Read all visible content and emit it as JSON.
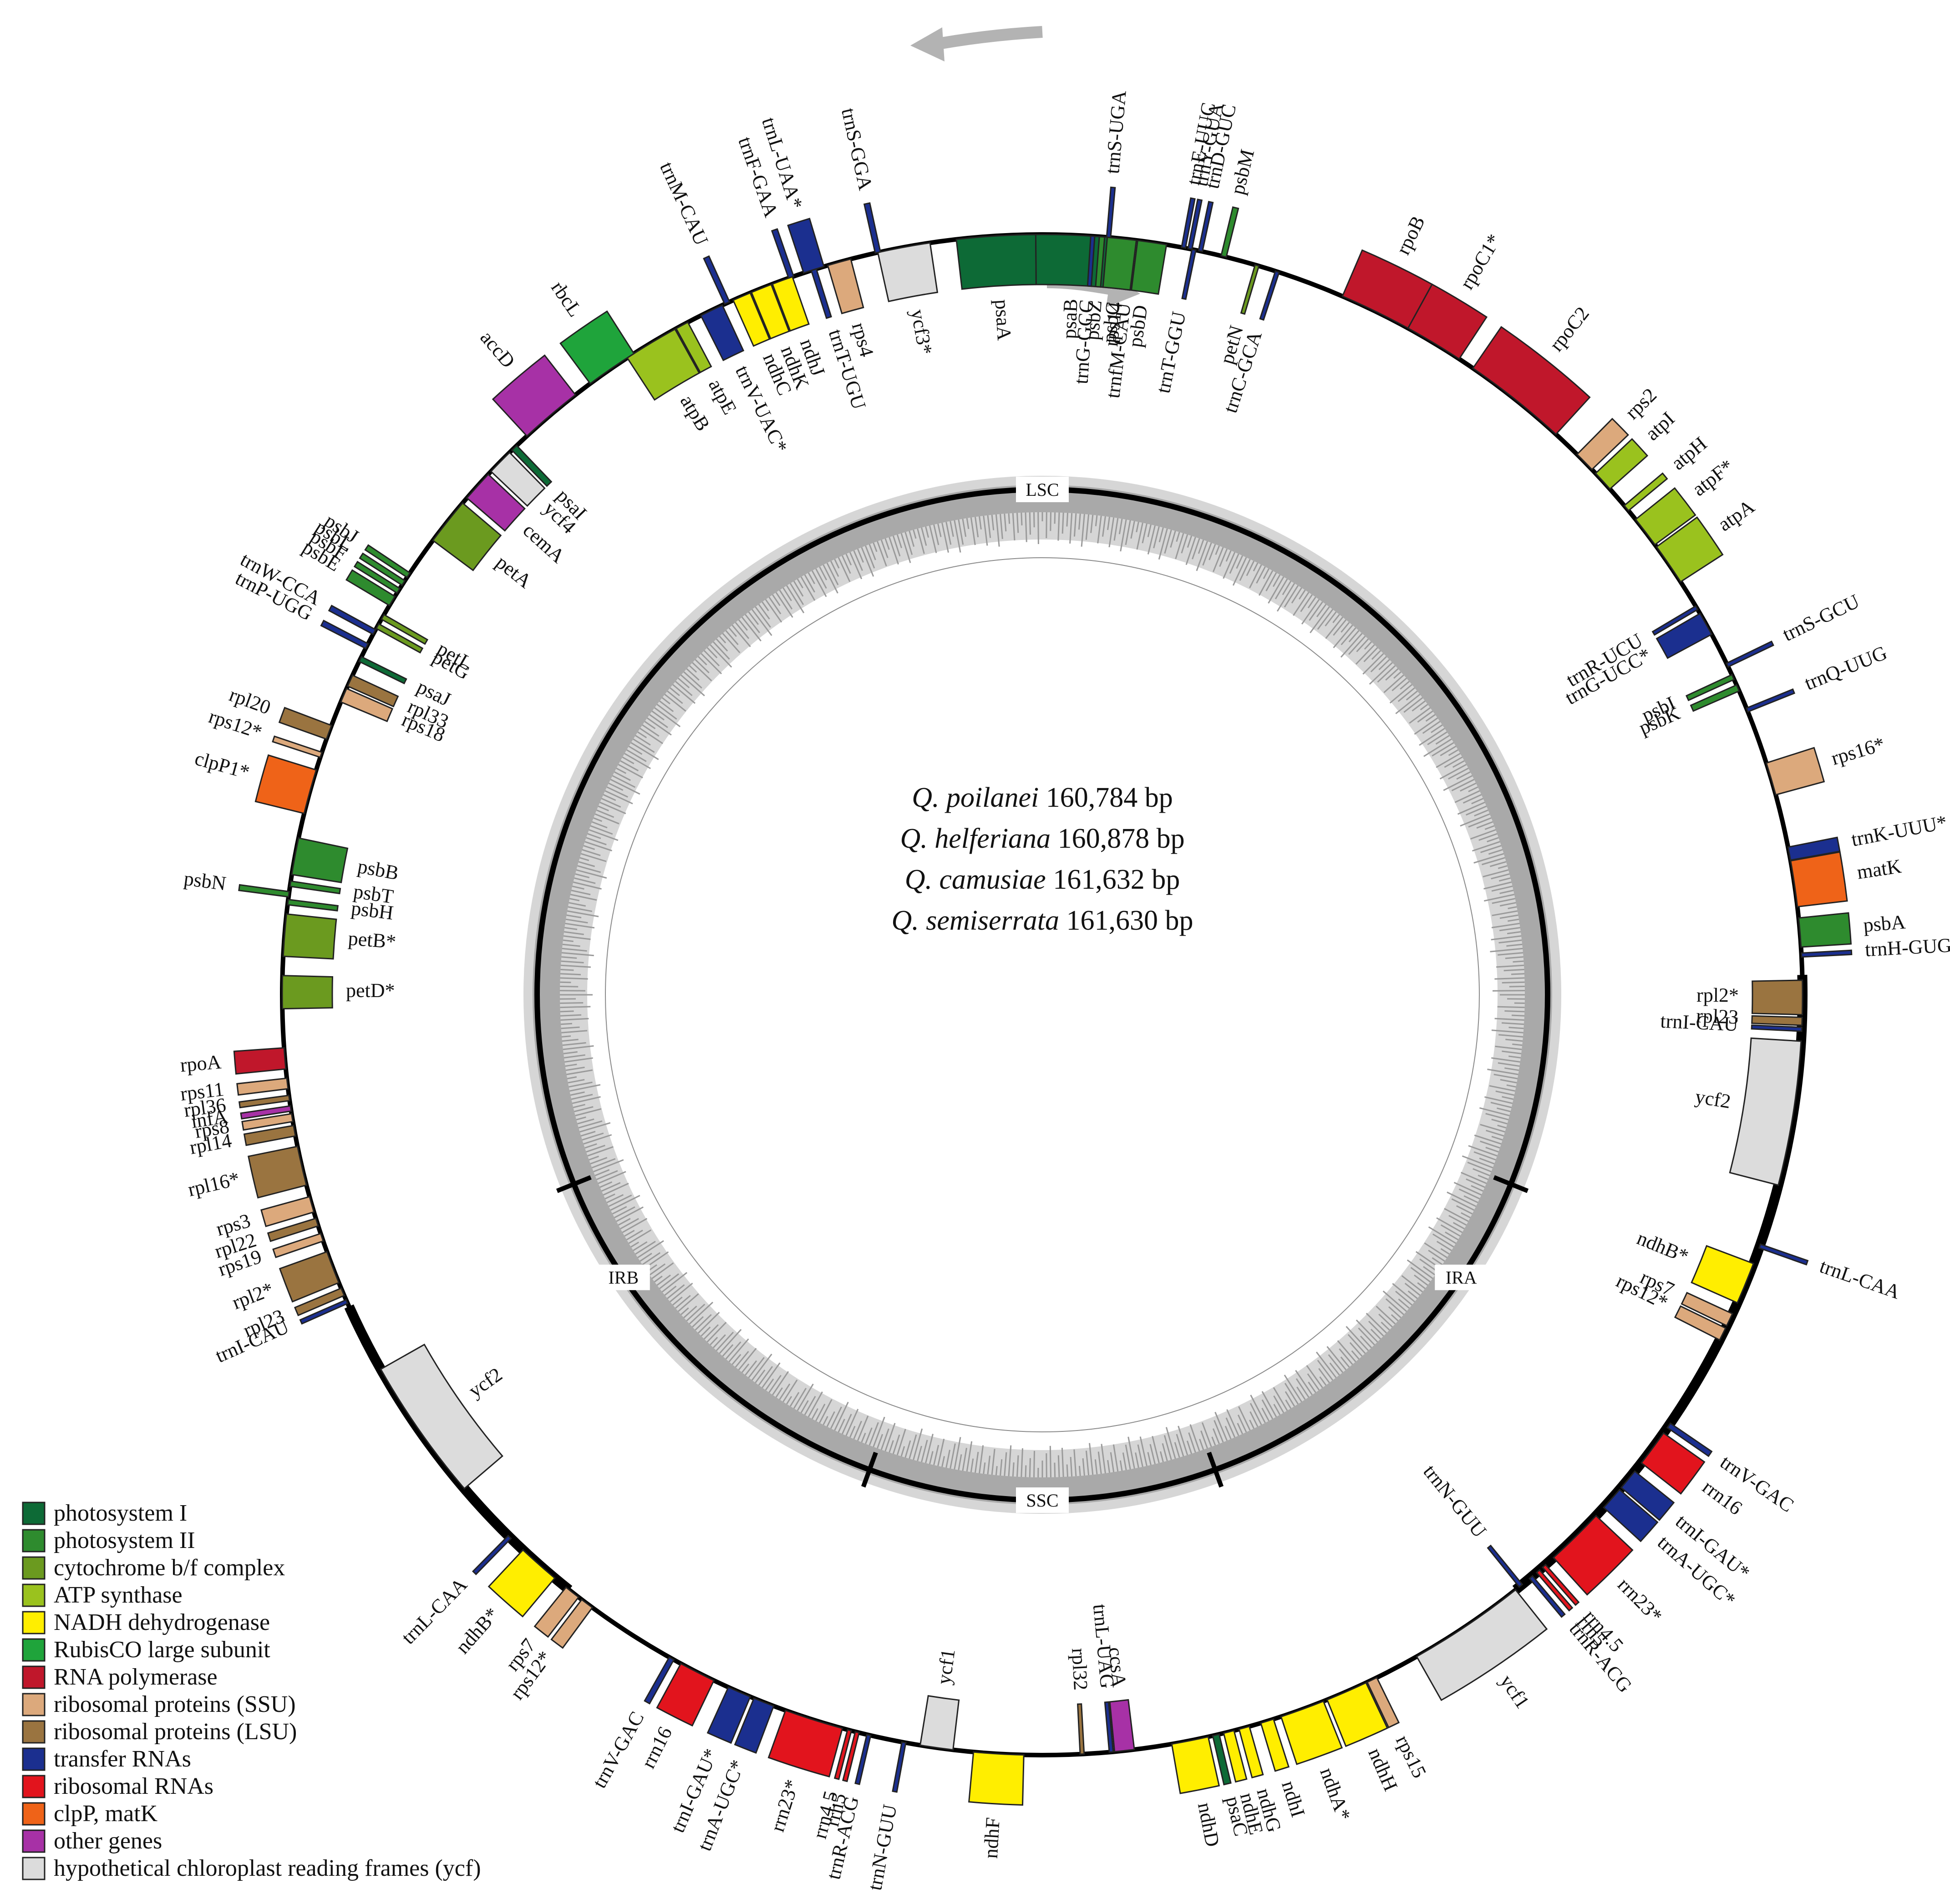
{
  "center": {
    "lines": [
      {
        "species": "Q. poilanei",
        "size": "160,784 bp"
      },
      {
        "species": "Q. helferiana",
        "size": "160,878 bp"
      },
      {
        "species": "Q. camusiae",
        "size": "161,632 bp"
      },
      {
        "species": "Q. semiserrata",
        "size": "161,630 bp"
      }
    ]
  },
  "regions": [
    {
      "label": "LSC",
      "angle": 0
    },
    {
      "label": "IRA",
      "angle": 124
    },
    {
      "label": "SSC",
      "angle": 180
    },
    {
      "label": "IRB",
      "angle": 236
    }
  ],
  "boundary_ticks": [
    112,
    160,
    200,
    248
  ],
  "legend": [
    {
      "key": "psi",
      "label": "photosystem I",
      "color": "#0d6a36"
    },
    {
      "key": "psii",
      "label": "photosystem II",
      "color": "#2e8b2e"
    },
    {
      "key": "cyt",
      "label": "cytochrome b/f complex",
      "color": "#6b9a1f"
    },
    {
      "key": "atp",
      "label": "ATP synthase",
      "color": "#9ac21e"
    },
    {
      "key": "ndh",
      "label": "NADH dehydrogenase",
      "color": "#ffee00"
    },
    {
      "key": "rbc",
      "label": "RubisCO large subunit",
      "color": "#1fa43b"
    },
    {
      "key": "rpo",
      "label": "RNA polymerase",
      "color": "#c0172b"
    },
    {
      "key": "rps",
      "label": "ribosomal proteins (SSU)",
      "color": "#dca97c"
    },
    {
      "key": "rpl",
      "label": "ribosomal proteins (LSU)",
      "color": "#9a7440"
    },
    {
      "key": "trn",
      "label": "transfer RNAs",
      "color": "#1b2f8f"
    },
    {
      "key": "rrn",
      "label": "ribosomal RNAs",
      "color": "#e2141d"
    },
    {
      "key": "clp",
      "label": "clpP, matK",
      "color": "#ef6318"
    },
    {
      "key": "oth",
      "label": "other genes",
      "color": "#a731a6"
    },
    {
      "key": "ycf",
      "label": "hypothetical chloroplast reading frames (ycf)",
      "color": "#dcdcdc"
    }
  ],
  "genes": [
    {
      "n": "psaA",
      "a": -3.5,
      "w": 6.0,
      "s": "in",
      "t": "psi"
    },
    {
      "n": "psaB",
      "a": 2.5,
      "w": 6.0,
      "s": "in",
      "t": "psi"
    },
    {
      "n": "rps14",
      "a": 6.2,
      "w": 1.0,
      "s": "in",
      "t": "rps"
    },
    {
      "n": "trnfM-CAU",
      "a": 6.9,
      "w": 0.3,
      "s": "in",
      "t": "trn"
    },
    {
      "n": "ycf3*",
      "a": -10.5,
      "w": 4.0,
      "s": "in",
      "t": "ycf"
    },
    {
      "n": "rps4",
      "a": -15.5,
      "w": 1.8,
      "s": "in",
      "t": "rps"
    },
    {
      "n": "trnT-UGU",
      "a": -17.5,
      "w": 0.4,
      "s": "in",
      "t": "trn"
    },
    {
      "n": "ndhJ",
      "a": -20.0,
      "w": 1.6,
      "s": "in",
      "t": "ndh"
    },
    {
      "n": "ndhK",
      "a": -21.7,
      "w": 1.6,
      "s": "in",
      "t": "ndh"
    },
    {
      "n": "ndhC",
      "a": -23.3,
      "w": 1.4,
      "s": "in",
      "t": "ndh"
    },
    {
      "n": "trnV-UAC*",
      "a": -25.8,
      "w": 1.8,
      "s": "in",
      "t": "trn"
    },
    {
      "n": "atpE",
      "a": -28.3,
      "w": 1.0,
      "s": "in",
      "t": "atp"
    },
    {
      "n": "atpB",
      "a": -31.0,
      "w": 4.2,
      "s": "in",
      "t": "atp"
    },
    {
      "n": "trnS-GGA",
      "a": -12.5,
      "w": 0.4,
      "s": "out",
      "t": "trn"
    },
    {
      "n": "trnL-UAA*",
      "a": -17.5,
      "w": 1.6,
      "s": "out",
      "t": "trn"
    },
    {
      "n": "trnF-GAA",
      "a": -19.3,
      "w": 0.4,
      "s": "out",
      "t": "trn"
    },
    {
      "n": "trnM-CAU",
      "a": -24.5,
      "w": 0.4,
      "s": "out",
      "t": "trn"
    },
    {
      "n": "rbcL",
      "a": -34.5,
      "w": 4.0,
      "s": "out",
      "t": "rbc"
    },
    {
      "n": "accD",
      "a": -40.3,
      "w": 4.8,
      "s": "out",
      "t": "oth"
    },
    {
      "n": "psaI",
      "a": -44.0,
      "w": 0.5,
      "s": "in",
      "t": "psi"
    },
    {
      "n": "ycf4",
      "a": -45.5,
      "w": 2.0,
      "s": "in",
      "t": "ycf"
    },
    {
      "n": "cemA",
      "a": -48.0,
      "w": 2.4,
      "s": "in",
      "t": "oth"
    },
    {
      "n": "petA",
      "a": -51.5,
      "w": 3.6,
      "s": "in",
      "t": "cyt"
    },
    {
      "n": "psbJ",
      "a": -56.5,
      "w": 0.4,
      "s": "out",
      "t": "psii"
    },
    {
      "n": "psbL",
      "a": -57.2,
      "w": 0.4,
      "s": "out",
      "t": "psii"
    },
    {
      "n": "psbF",
      "a": -57.9,
      "w": 0.4,
      "s": "out",
      "t": "psii"
    },
    {
      "n": "psbE",
      "a": -58.8,
      "w": 0.8,
      "s": "out",
      "t": "psii"
    },
    {
      "n": "petL",
      "a": -60.2,
      "w": 0.4,
      "s": "in",
      "t": "cyt"
    },
    {
      "n": "petG",
      "a": -61.0,
      "w": 0.4,
      "s": "in",
      "t": "cyt"
    },
    {
      "n": "trnW-CCA",
      "a": -61.5,
      "w": 0.4,
      "s": "out",
      "t": "trn"
    },
    {
      "n": "trnP-UGG",
      "a": -62.7,
      "w": 0.4,
      "s": "out",
      "t": "trn"
    },
    {
      "n": "psaJ",
      "a": -63.8,
      "w": 0.4,
      "s": "in",
      "t": "psi"
    },
    {
      "n": "rpl33",
      "a": -65.6,
      "w": 0.9,
      "s": "in",
      "t": "rpl"
    },
    {
      "n": "rps18",
      "a": -66.8,
      "w": 1.1,
      "s": "in",
      "t": "rps"
    },
    {
      "n": "rpl20",
      "a": -69.8,
      "w": 1.1,
      "s": "out",
      "t": "rpl"
    },
    {
      "n": "rps12*",
      "a": -71.6,
      "w": 0.4,
      "s": "out",
      "t": "rps"
    },
    {
      "n": "clpP1*",
      "a": -74.5,
      "w": 3.4,
      "s": "out",
      "t": "clp"
    },
    {
      "n": "psbB",
      "a": -79.5,
      "w": 2.8,
      "s": "in",
      "t": "psii"
    },
    {
      "n": "psbT",
      "a": -81.6,
      "w": 0.4,
      "s": "in",
      "t": "psii"
    },
    {
      "n": "psbN",
      "a": -82.4,
      "w": 0.4,
      "s": "out",
      "t": "psii"
    },
    {
      "n": "psbH",
      "a": -83.0,
      "w": 0.4,
      "s": "in",
      "t": "psii"
    },
    {
      "n": "petB*",
      "a": -85.5,
      "w": 3.2,
      "s": "in",
      "t": "cyt"
    },
    {
      "n": "petD*",
      "a": -89.8,
      "w": 2.5,
      "s": "in",
      "t": "cyt"
    },
    {
      "n": "rpoA",
      "a": -94.8,
      "w": 1.6,
      "s": "out",
      "t": "rpo"
    },
    {
      "n": "rps11",
      "a": -96.7,
      "w": 0.8,
      "s": "out",
      "t": "rps"
    },
    {
      "n": "rpl36",
      "a": -97.8,
      "w": 0.4,
      "s": "out",
      "t": "rpl"
    },
    {
      "n": "infA",
      "a": -98.6,
      "w": 0.4,
      "s": "out",
      "t": "oth"
    },
    {
      "n": "rps8",
      "a": -99.3,
      "w": 0.6,
      "s": "out",
      "t": "rps"
    },
    {
      "n": "rpl14",
      "a": -100.3,
      "w": 0.8,
      "s": "out",
      "t": "rpl"
    },
    {
      "n": "rpl16*",
      "a": -103.0,
      "w": 3.0,
      "s": "out",
      "t": "rpl"
    },
    {
      "n": "rps3",
      "a": -106.0,
      "w": 1.2,
      "s": "out",
      "t": "rps"
    },
    {
      "n": "rpl22",
      "a": -107.4,
      "w": 0.6,
      "s": "out",
      "t": "rpl"
    },
    {
      "n": "rps19",
      "a": -108.6,
      "w": 0.6,
      "s": "out",
      "t": "rps"
    },
    {
      "n": "rpl2*",
      "a": -111.0,
      "w": 2.5,
      "s": "out",
      "t": "rpl"
    },
    {
      "n": "rpl23",
      "a": -113.0,
      "w": 0.6,
      "s": "out",
      "t": "rpl"
    },
    {
      "n": "trnI-CAU",
      "a": -113.8,
      "w": 0.3,
      "s": "out",
      "t": "trn"
    },
    {
      "n": "ycf2",
      "a": -125.0,
      "w": 11.0,
      "s": "in",
      "t": "ycf"
    },
    {
      "n": "trnL-CAA",
      "a": -135.5,
      "w": 0.3,
      "s": "out",
      "t": "trn"
    },
    {
      "n": "ndhB*",
      "a": -138.5,
      "w": 3.2,
      "s": "out",
      "t": "ndh"
    },
    {
      "n": "rps7",
      "a": -141.8,
      "w": 1.2,
      "s": "out",
      "t": "rps"
    },
    {
      "n": "rps12*",
      "a": -143.2,
      "w": 1.0,
      "s": "out",
      "t": "rps"
    },
    {
      "n": "trnV-GAC",
      "a": -150.8,
      "w": 0.4,
      "s": "out",
      "t": "trn"
    },
    {
      "n": "rrn16",
      "a": -153.0,
      "w": 2.8,
      "s": "out",
      "t": "rrn"
    },
    {
      "n": "trnI-GAU*",
      "a": -156.5,
      "w": 1.8,
      "s": "out",
      "t": "trn"
    },
    {
      "n": "trnA-UGC*",
      "a": -158.5,
      "w": 1.6,
      "s": "out",
      "t": "trn"
    },
    {
      "n": "rrn23*",
      "a": -162.5,
      "w": 4.5,
      "s": "out",
      "t": "rrn"
    },
    {
      "n": "rrn4.5",
      "a": -165.3,
      "w": 0.3,
      "s": "out",
      "t": "rrn"
    },
    {
      "n": "rrn5",
      "a": -165.9,
      "w": 0.3,
      "s": "out",
      "t": "rrn"
    },
    {
      "n": "trnR-ACG",
      "a": -166.8,
      "w": 0.3,
      "s": "out",
      "t": "trn"
    },
    {
      "n": "trnN-GUU",
      "a": -169.5,
      "w": 0.3,
      "s": "out",
      "t": "trn"
    },
    {
      "n": "ycf1",
      "a": -172.0,
      "w": 2.5,
      "s": "in",
      "t": "ycf"
    },
    {
      "n": "ndhF",
      "a": -176.7,
      "w": 3.8,
      "s": "out",
      "t": "ndh"
    },
    {
      "n": "rpl32",
      "a": 177.0,
      "w": 0.3,
      "s": "in",
      "t": "rpl"
    },
    {
      "n": "trnL-UAG",
      "a": 174.8,
      "w": 0.3,
      "s": "in",
      "t": "trn"
    },
    {
      "n": "ccsA",
      "a": 173.8,
      "w": 1.5,
      "s": "in",
      "t": "oth"
    },
    {
      "n": "ndhD",
      "a": 168.8,
      "w": 2.8,
      "s": "out",
      "t": "ndh"
    },
    {
      "n": "psaC",
      "a": 166.8,
      "w": 0.5,
      "s": "out",
      "t": "psi"
    },
    {
      "n": "ndhE",
      "a": 165.8,
      "w": 0.8,
      "s": "out",
      "t": "ndh"
    },
    {
      "n": "ndhG",
      "a": 164.6,
      "w": 0.8,
      "s": "out",
      "t": "ndh"
    },
    {
      "n": "ndhI",
      "a": 162.8,
      "w": 1.0,
      "s": "out",
      "t": "ndh"
    },
    {
      "n": "ndhA*",
      "a": 160.0,
      "w": 3.4,
      "s": "out",
      "t": "ndh"
    },
    {
      "n": "ndhH",
      "a": 156.4,
      "w": 3.2,
      "s": "out",
      "t": "ndh"
    },
    {
      "n": "rps15",
      "a": 154.3,
      "w": 0.8,
      "s": "out",
      "t": "rps"
    },
    {
      "n": "ycf1",
      "a": 146.0,
      "w": 9.0,
      "s": "out",
      "t": "ycf"
    },
    {
      "n": "trnN-GUU",
      "a": 141.0,
      "w": 0.3,
      "s": "in",
      "t": "trn"
    },
    {
      "n": "trnR-ACG",
      "a": 140.0,
      "w": 0.3,
      "s": "out",
      "t": "trn"
    },
    {
      "n": "rrn5",
      "a": 139.3,
      "w": 0.3,
      "s": "out",
      "t": "rrn"
    },
    {
      "n": "rrn4.5",
      "a": 138.7,
      "w": 0.3,
      "s": "out",
      "t": "rrn"
    },
    {
      "n": "rrn23*",
      "a": 135.5,
      "w": 4.5,
      "s": "out",
      "t": "rrn"
    },
    {
      "n": "trnA-UGC*",
      "a": 131.5,
      "w": 1.8,
      "s": "out",
      "t": "trn"
    },
    {
      "n": "trnI-GAU*",
      "a": 129.6,
      "w": 1.6,
      "s": "out",
      "t": "trn"
    },
    {
      "n": "rrn16",
      "a": 126.6,
      "w": 2.8,
      "s": "out",
      "t": "rrn"
    },
    {
      "n": "trnV-GAC",
      "a": 124.5,
      "w": 0.4,
      "s": "out",
      "t": "trn"
    },
    {
      "n": "rps12*",
      "a": 116.5,
      "w": 1.0,
      "s": "in",
      "t": "rps"
    },
    {
      "n": "rps7",
      "a": 115.3,
      "w": 1.0,
      "s": "in",
      "t": "rps"
    },
    {
      "n": "ndhB*",
      "a": 112.3,
      "w": 3.2,
      "s": "in",
      "t": "ndh"
    },
    {
      "n": "trnL-CAA",
      "a": 109.3,
      "w": 0.3,
      "s": "out",
      "t": "trn"
    },
    {
      "n": "ycf2",
      "a": 99.0,
      "w": 11.0,
      "s": "in",
      "t": "ycf"
    },
    {
      "n": "trnI-CAU",
      "a": 92.6,
      "w": 0.3,
      "s": "in",
      "t": "trn"
    },
    {
      "n": "rpl23",
      "a": 92.0,
      "w": 0.6,
      "s": "in",
      "t": "rpl"
    },
    {
      "n": "rpl2*",
      "a": 90.2,
      "w": 2.6,
      "s": "in",
      "t": "rpl"
    },
    {
      "n": "trnH-GUG",
      "a": 87.0,
      "w": 0.3,
      "s": "out",
      "t": "trn"
    },
    {
      "n": "psbA",
      "a": 85.3,
      "w": 2.2,
      "s": "out",
      "t": "psii"
    },
    {
      "n": "matK",
      "a": 81.6,
      "w": 3.5,
      "s": "out",
      "t": "clp"
    },
    {
      "n": "trnK-UUU*",
      "a": 79.3,
      "w": 1.0,
      "s": "out",
      "t": "trn"
    },
    {
      "n": "rps16*",
      "a": 73.5,
      "w": 2.5,
      "s": "out",
      "t": "rps"
    },
    {
      "n": "trnQ-UUG",
      "a": 68.0,
      "w": 0.3,
      "s": "out",
      "t": "trn"
    },
    {
      "n": "psbK",
      "a": 66.2,
      "w": 0.5,
      "s": "in",
      "t": "psii"
    },
    {
      "n": "psbI",
      "a": 65.3,
      "w": 0.4,
      "s": "in",
      "t": "psii"
    },
    {
      "n": "trnS-GCU",
      "a": 64.3,
      "w": 0.3,
      "s": "out",
      "t": "trn"
    },
    {
      "n": "trnG-UCC*",
      "a": 60.8,
      "w": 1.8,
      "s": "in",
      "t": "trn"
    },
    {
      "n": "trnR-UCU",
      "a": 59.4,
      "w": 0.3,
      "s": "in",
      "t": "trn"
    },
    {
      "n": "atpA",
      "a": 55.5,
      "w": 3.2,
      "s": "out",
      "t": "atp"
    },
    {
      "n": "atpF*",
      "a": 52.5,
      "w": 2.4,
      "s": "out",
      "t": "atp"
    },
    {
      "n": "atpH",
      "a": 50.2,
      "w": 0.5,
      "s": "out",
      "t": "atp"
    },
    {
      "n": "atpI",
      "a": 47.5,
      "w": 1.6,
      "s": "out",
      "t": "atp"
    },
    {
      "n": "rps2",
      "a": 45.5,
      "w": 1.6,
      "s": "out",
      "t": "rps"
    },
    {
      "n": "rpoC2",
      "a": 38.5,
      "w": 8.0,
      "s": "out",
      "t": "rpo"
    },
    {
      "n": "rpoC1*",
      "a": 31.0,
      "w": 4.5,
      "s": "out",
      "t": "rpo"
    },
    {
      "n": "rpoB",
      "a": 26.0,
      "w": 5.5,
      "s": "out",
      "t": "rpo"
    },
    {
      "n": "trnC-GCA",
      "a": 18.0,
      "w": 0.3,
      "s": "in",
      "t": "trn"
    },
    {
      "n": "petN",
      "a": 16.4,
      "w": 0.3,
      "s": "in",
      "t": "cyt"
    },
    {
      "n": "psbM",
      "a": 13.8,
      "w": 0.4,
      "s": "out",
      "t": "psii"
    },
    {
      "n": "trnD-GUC",
      "a": 12.0,
      "w": 0.3,
      "s": "out",
      "t": "trn"
    },
    {
      "n": "trnY-GUA",
      "a": 11.2,
      "w": 0.3,
      "s": "out",
      "t": "trn"
    },
    {
      "n": "trnE-UUC",
      "a": 10.7,
      "w": 0.3,
      "s": "out",
      "t": "trn"
    },
    {
      "n": "trnT-GGU",
      "a": 11.5,
      "w": 0.3,
      "s": "in",
      "t": "trn"
    },
    {
      "n": "psbD",
      "a": 8.3,
      "w": 2.2,
      "s": "in",
      "t": "psii"
    },
    {
      "n": "psbC",
      "a": 6.0,
      "w": 2.2,
      "s": "in",
      "t": "psii"
    },
    {
      "n": "trnS-UGA",
      "a": 5.0,
      "w": 0.3,
      "s": "out",
      "t": "trn"
    },
    {
      "n": "psbZ",
      "a": 4.5,
      "w": 0.4,
      "s": "in",
      "t": "psii"
    },
    {
      "n": "trnG-GCC",
      "a": 3.8,
      "w": 0.3,
      "s": "in",
      "t": "trn"
    }
  ]
}
